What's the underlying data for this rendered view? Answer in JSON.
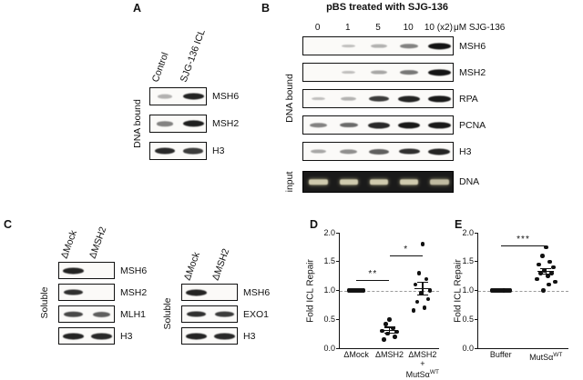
{
  "panel_a": {
    "label": "A",
    "side_label": "DNA bound",
    "lanes": [
      "Control",
      "SJG-136 ICL"
    ],
    "rows": [
      {
        "label": "MSH6",
        "bands": [
          0.3,
          0.9
        ]
      },
      {
        "label": "MSH2",
        "bands": [
          0.5,
          0.92
        ]
      },
      {
        "label": "H3",
        "bands": [
          0.88,
          0.8
        ]
      }
    ]
  },
  "panel_b": {
    "label": "B",
    "title": "pBS treated with SJG-136",
    "lane_labels": [
      "0",
      "1",
      "5",
      "10",
      "10 (x2)"
    ],
    "lane_unit": "μM SJG-136",
    "side_label": "DNA bound",
    "rows": [
      {
        "label": "MSH6",
        "bands": [
          0,
          0.08,
          0.3,
          0.5,
          0.97
        ]
      },
      {
        "label": "MSH2",
        "bands": [
          0,
          0.12,
          0.35,
          0.55,
          0.97
        ]
      },
      {
        "label": "RPA",
        "bands": [
          0.1,
          0.3,
          0.8,
          0.9,
          0.95
        ]
      },
      {
        "label": "PCNA",
        "bands": [
          0.5,
          0.6,
          0.88,
          0.95,
          0.95
        ]
      },
      {
        "label": "H3",
        "bands": [
          0.35,
          0.45,
          0.65,
          0.85,
          0.9
        ]
      }
    ],
    "input_side_label": "input",
    "input_row": {
      "label": "DNA",
      "bands": [
        0.85,
        0.85,
        0.85,
        0.85,
        0.78
      ]
    }
  },
  "panel_c": {
    "label": "C",
    "groups": [
      {
        "side_label": "Soluble",
        "lanes": [
          "ΔMock",
          "ΔMSH2"
        ],
        "rows": [
          {
            "label": "MSH6",
            "bands": [
              0.9,
              0
            ]
          },
          {
            "label": "MSH2",
            "bands": [
              0.85,
              0
            ]
          },
          {
            "label": "MLH1",
            "bands": [
              0.75,
              0.65
            ]
          },
          {
            "label": "H3",
            "bands": [
              0.9,
              0.88
            ]
          }
        ]
      },
      {
        "side_label": "Soluble",
        "lanes": [
          "ΔMock",
          "ΔMSH2"
        ],
        "rows": [
          {
            "label": "MSH6",
            "bands": [
              0.9,
              0
            ]
          },
          {
            "label": "EXO1",
            "bands": [
              0.85,
              0.8
            ]
          },
          {
            "label": "H3",
            "bands": [
              0.9,
              0.88
            ]
          }
        ]
      }
    ]
  },
  "panel_d": {
    "label": "D"
  },
  "panel_e": {
    "label": "E"
  },
  "chart_data": [
    {
      "type": "scatter",
      "panel": "D",
      "ylabel": "Fold ICL Repair",
      "ylim": [
        0,
        2
      ],
      "yticks": [
        "0.0",
        "0.5",
        "1.0",
        "1.5",
        "2.0"
      ],
      "reference_line": 1.0,
      "legend": "none",
      "grid": false,
      "groups": [
        {
          "label": "ΔMock",
          "points": [
            1,
            1,
            1,
            1,
            1,
            1,
            1,
            1,
            1
          ],
          "mean": 1.0,
          "sem": 0
        },
        {
          "label": "ΔMSH2",
          "points": [
            0.5,
            0.42,
            0.35,
            0.3,
            0.28,
            0.25,
            0.2,
            0.15
          ],
          "mean": 0.31,
          "sem": 0.05
        },
        {
          "label": "ΔMSH2\n+\nMutSα^WT",
          "points": [
            1.8,
            1.3,
            1.2,
            1.1,
            1.0,
            0.95,
            0.85,
            0.8,
            0.7,
            0.65
          ],
          "mean": 1.03,
          "sem": 0.11
        }
      ],
      "significance": [
        {
          "from": 0,
          "to": 1,
          "y": 1.18,
          "label": "**"
        },
        {
          "from": 1,
          "to": 2,
          "y": 1.6,
          "label": "*"
        }
      ]
    },
    {
      "type": "scatter",
      "panel": "E",
      "ylabel": "Fold ICL Repair",
      "ylim": [
        0,
        2
      ],
      "yticks": [
        "0.0",
        "0.5",
        "1.0",
        "1.5",
        "2.0"
      ],
      "reference_line": 1.0,
      "legend": "none",
      "grid": false,
      "groups": [
        {
          "label": "Buffer",
          "points": [
            1,
            1,
            1,
            1,
            1,
            1,
            1,
            1,
            1,
            1,
            1,
            1
          ],
          "mean": 1.0,
          "sem": 0
        },
        {
          "label": "MutSα^WT",
          "points": [
            1.75,
            1.6,
            1.5,
            1.45,
            1.4,
            1.35,
            1.3,
            1.3,
            1.25,
            1.2,
            1.15,
            1.1,
            1.0
          ],
          "mean": 1.33,
          "sem": 0.05
        }
      ],
      "significance": [
        {
          "from": 0,
          "to": 1,
          "y": 1.78,
          "label": "***"
        }
      ]
    }
  ]
}
